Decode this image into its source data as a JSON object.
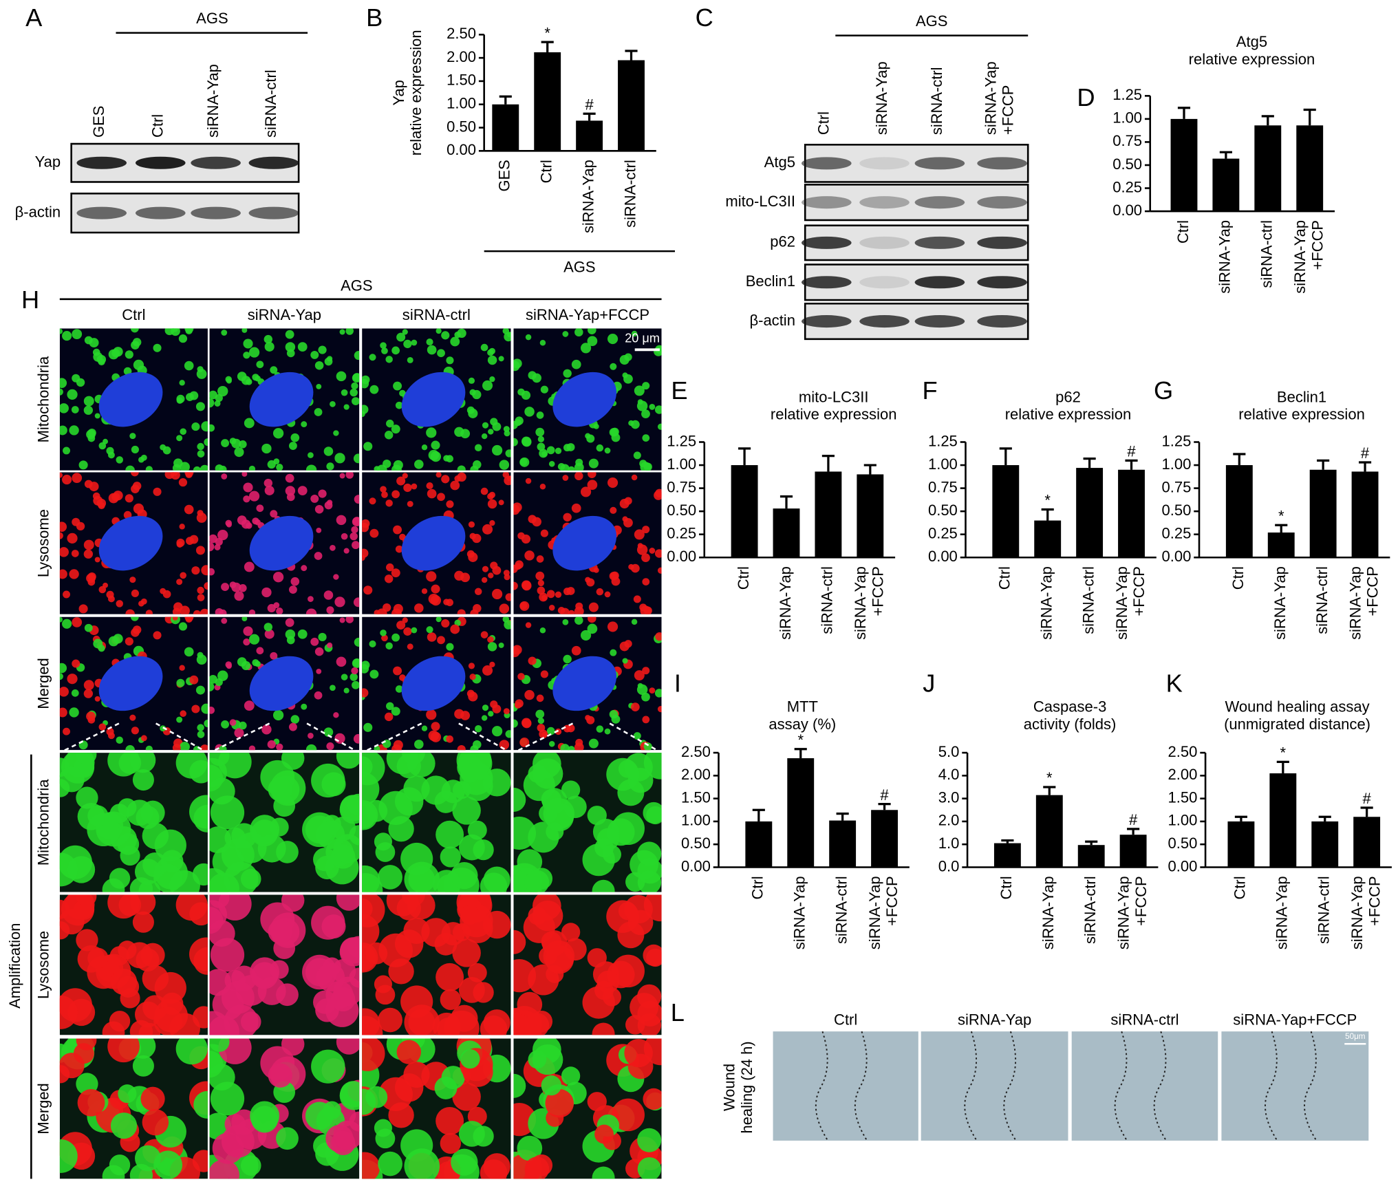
{
  "panel_labels": [
    "A",
    "B",
    "C",
    "D",
    "E",
    "F",
    "G",
    "H",
    "I",
    "J",
    "K",
    "L"
  ],
  "blot_a": {
    "group": "AGS",
    "lanes": [
      "GES",
      "Ctrl",
      "siRNA-Yap",
      "siRNA-ctrl"
    ],
    "rows": [
      "Yap",
      "β-actin"
    ]
  },
  "blot_c": {
    "group": "AGS",
    "lanes": [
      "Ctrl",
      "siRNA-Yap",
      "siRNA-ctrl",
      "siRNA-Yap\n+FCCP"
    ],
    "rows": [
      "Atg5",
      "mito-LC3II",
      "p62",
      "Beclin1",
      "β-actin"
    ]
  },
  "micrographs": {
    "group": "AGS",
    "columns": [
      "Ctrl",
      "siRNA-Yap",
      "siRNA-ctrl",
      "siRNA-Yap+FCCP"
    ],
    "rows": [
      "Mitochondria",
      "Lysosome",
      "Merged"
    ],
    "scale_bar": "20 μm",
    "amplification": "Amplification",
    "amplified_rows": [
      "Mitochondria",
      "Lysosome",
      "Merged"
    ]
  },
  "wound_healing": {
    "row_label": "Wound\nhealing (24 h)",
    "columns": [
      "Ctrl",
      "siRNA-Yap",
      "siRNA-ctrl",
      "siRNA-Yap+FCCP"
    ],
    "scale_bar": "50μm"
  },
  "chart_data": [
    {
      "type": "bar",
      "y_label": "Yap\nrelative expression",
      "group_label": "AGS",
      "categories": [
        "GES",
        "Ctrl",
        "siRNA-Yap",
        "siRNA-ctrl"
      ],
      "values": [
        1.0,
        2.12,
        0.65,
        1.95
      ],
      "errors": [
        0.17,
        0.22,
        0.15,
        0.2
      ],
      "annotations": [
        null,
        "*",
        "#",
        null
      ],
      "color": "#000000",
      "ylim": [
        0,
        2.5
      ],
      "yticks": [
        {
          "value": 0,
          "label": "0.00"
        },
        {
          "value": 0.5,
          "label": "0.50"
        },
        {
          "value": 1,
          "label": "1.00"
        },
        {
          "value": 1.5,
          "label": "1.50"
        },
        {
          "value": 2,
          "label": "2.00"
        },
        {
          "value": 2.5,
          "label": "2.50"
        }
      ]
    },
    {
      "type": "bar",
      "title": "Atg5\nrelative expression",
      "categories": [
        "Ctrl",
        "siRNA-Yap",
        "siRNA-ctrl",
        "siRNA-Yap\n+FCCP"
      ],
      "values": [
        1.0,
        0.57,
        0.93,
        0.93
      ],
      "errors": [
        0.12,
        0.07,
        0.1,
        0.17
      ],
      "annotations": [
        null,
        null,
        null,
        null
      ],
      "color": "#000000",
      "ylim": [
        0,
        1.25
      ],
      "yticks": [
        {
          "value": 0,
          "label": "0.00"
        },
        {
          "value": 0.25,
          "label": "0.25"
        },
        {
          "value": 0.5,
          "label": "0.50"
        },
        {
          "value": 0.75,
          "label": "0.75"
        },
        {
          "value": 1,
          "label": "1.00"
        },
        {
          "value": 1.25,
          "label": "1.25"
        }
      ]
    },
    {
      "type": "bar",
      "title": "mito-LC3II\nrelative expression",
      "categories": [
        "Ctrl",
        "siRNA-Yap",
        "siRNA-ctrl",
        "siRNA-Yap\n+FCCP"
      ],
      "values": [
        1.0,
        0.53,
        0.93,
        0.9
      ],
      "errors": [
        0.18,
        0.13,
        0.17,
        0.1
      ],
      "annotations": [
        null,
        null,
        null,
        null
      ],
      "color": "#000000",
      "ylim": [
        0,
        1.25
      ],
      "yticks": [
        {
          "value": 0,
          "label": "0.00"
        },
        {
          "value": 0.25,
          "label": "0.25"
        },
        {
          "value": 0.5,
          "label": "0.50"
        },
        {
          "value": 0.75,
          "label": "0.75"
        },
        {
          "value": 1,
          "label": "1.00"
        },
        {
          "value": 1.25,
          "label": "1.25"
        }
      ]
    },
    {
      "type": "bar",
      "title": "p62\nrelative expression",
      "categories": [
        "Ctrl",
        "siRNA-Yap",
        "siRNA-ctrl",
        "siRNA-Yap\n+FCCP"
      ],
      "values": [
        1.0,
        0.4,
        0.97,
        0.95
      ],
      "errors": [
        0.18,
        0.12,
        0.1,
        0.1
      ],
      "annotations": [
        null,
        "*",
        null,
        "#"
      ],
      "color": "#000000",
      "ylim": [
        0,
        1.25
      ],
      "yticks": [
        {
          "value": 0,
          "label": "0.00"
        },
        {
          "value": 0.25,
          "label": "0.25"
        },
        {
          "value": 0.5,
          "label": "0.50"
        },
        {
          "value": 0.75,
          "label": "0.75"
        },
        {
          "value": 1,
          "label": "1.00"
        },
        {
          "value": 1.25,
          "label": "1.25"
        }
      ]
    },
    {
      "type": "bar",
      "title": "Beclin1\nrelative expression",
      "categories": [
        "Ctrl",
        "siRNA-Yap",
        "siRNA-ctrl",
        "siRNA-Yap\n+FCCP"
      ],
      "values": [
        1.0,
        0.27,
        0.95,
        0.93
      ],
      "errors": [
        0.12,
        0.08,
        0.1,
        0.1
      ],
      "annotations": [
        null,
        "*",
        null,
        "#"
      ],
      "color": "#000000",
      "ylim": [
        0,
        1.25
      ],
      "yticks": [
        {
          "value": 0,
          "label": "0.00"
        },
        {
          "value": 0.25,
          "label": "0.25"
        },
        {
          "value": 0.5,
          "label": "0.50"
        },
        {
          "value": 0.75,
          "label": "0.75"
        },
        {
          "value": 1,
          "label": "1.00"
        },
        {
          "value": 1.25,
          "label": "1.25"
        }
      ]
    },
    {
      "type": "bar",
      "title": "MTT\nassay (%)",
      "categories": [
        "Ctrl",
        "siRNA-Yap",
        "siRNA-ctrl",
        "siRNA-Yap\n+FCCP"
      ],
      "values": [
        1.0,
        2.38,
        1.02,
        1.25
      ],
      "errors": [
        0.25,
        0.2,
        0.15,
        0.13
      ],
      "annotations": [
        null,
        "*",
        null,
        "#"
      ],
      "color": "#000000",
      "ylim": [
        0,
        2.5
      ],
      "yticks": [
        {
          "value": 0,
          "label": "0.00"
        },
        {
          "value": 0.5,
          "label": "0.50"
        },
        {
          "value": 1,
          "label": "1.00"
        },
        {
          "value": 1.5,
          "label": "1.50"
        },
        {
          "value": 2,
          "label": "2.00"
        },
        {
          "value": 2.5,
          "label": "2.50"
        }
      ]
    },
    {
      "type": "bar",
      "title": "Caspase-3\nactivity (folds)",
      "categories": [
        "Ctrl",
        "siRNA-Yap",
        "siRNA-ctrl",
        "siRNA-Yap\n+FCCP"
      ],
      "values": [
        1.05,
        3.15,
        0.97,
        1.42
      ],
      "errors": [
        0.12,
        0.35,
        0.15,
        0.25
      ],
      "annotations": [
        null,
        "*",
        null,
        "#"
      ],
      "color": "#000000",
      "ylim": [
        0,
        5
      ],
      "yticks": [
        {
          "value": 0,
          "label": "0.0"
        },
        {
          "value": 1,
          "label": "1.0"
        },
        {
          "value": 2,
          "label": "2.0"
        },
        {
          "value": 3,
          "label": "3.0"
        },
        {
          "value": 4,
          "label": "4.0"
        },
        {
          "value": 5,
          "label": "5.0"
        }
      ]
    },
    {
      "type": "bar",
      "title": "Wound healing assay\n(unmigrated distance)",
      "categories": [
        "Ctrl",
        "siRNA-Yap",
        "siRNA-ctrl",
        "siRNA-Yap\n+FCCP"
      ],
      "values": [
        1.0,
        2.05,
        1.0,
        1.1
      ],
      "errors": [
        0.1,
        0.25,
        0.1,
        0.2
      ],
      "annotations": [
        null,
        "*",
        null,
        "#"
      ],
      "color": "#000000",
      "ylim": [
        0,
        2.5
      ],
      "yticks": [
        {
          "value": 0,
          "label": "0.00"
        },
        {
          "value": 0.5,
          "label": "0.50"
        },
        {
          "value": 1,
          "label": "1.00"
        },
        {
          "value": 1.5,
          "label": "1.50"
        },
        {
          "value": 2,
          "label": "2.00"
        },
        {
          "value": 2.5,
          "label": "2.50"
        }
      ]
    }
  ]
}
